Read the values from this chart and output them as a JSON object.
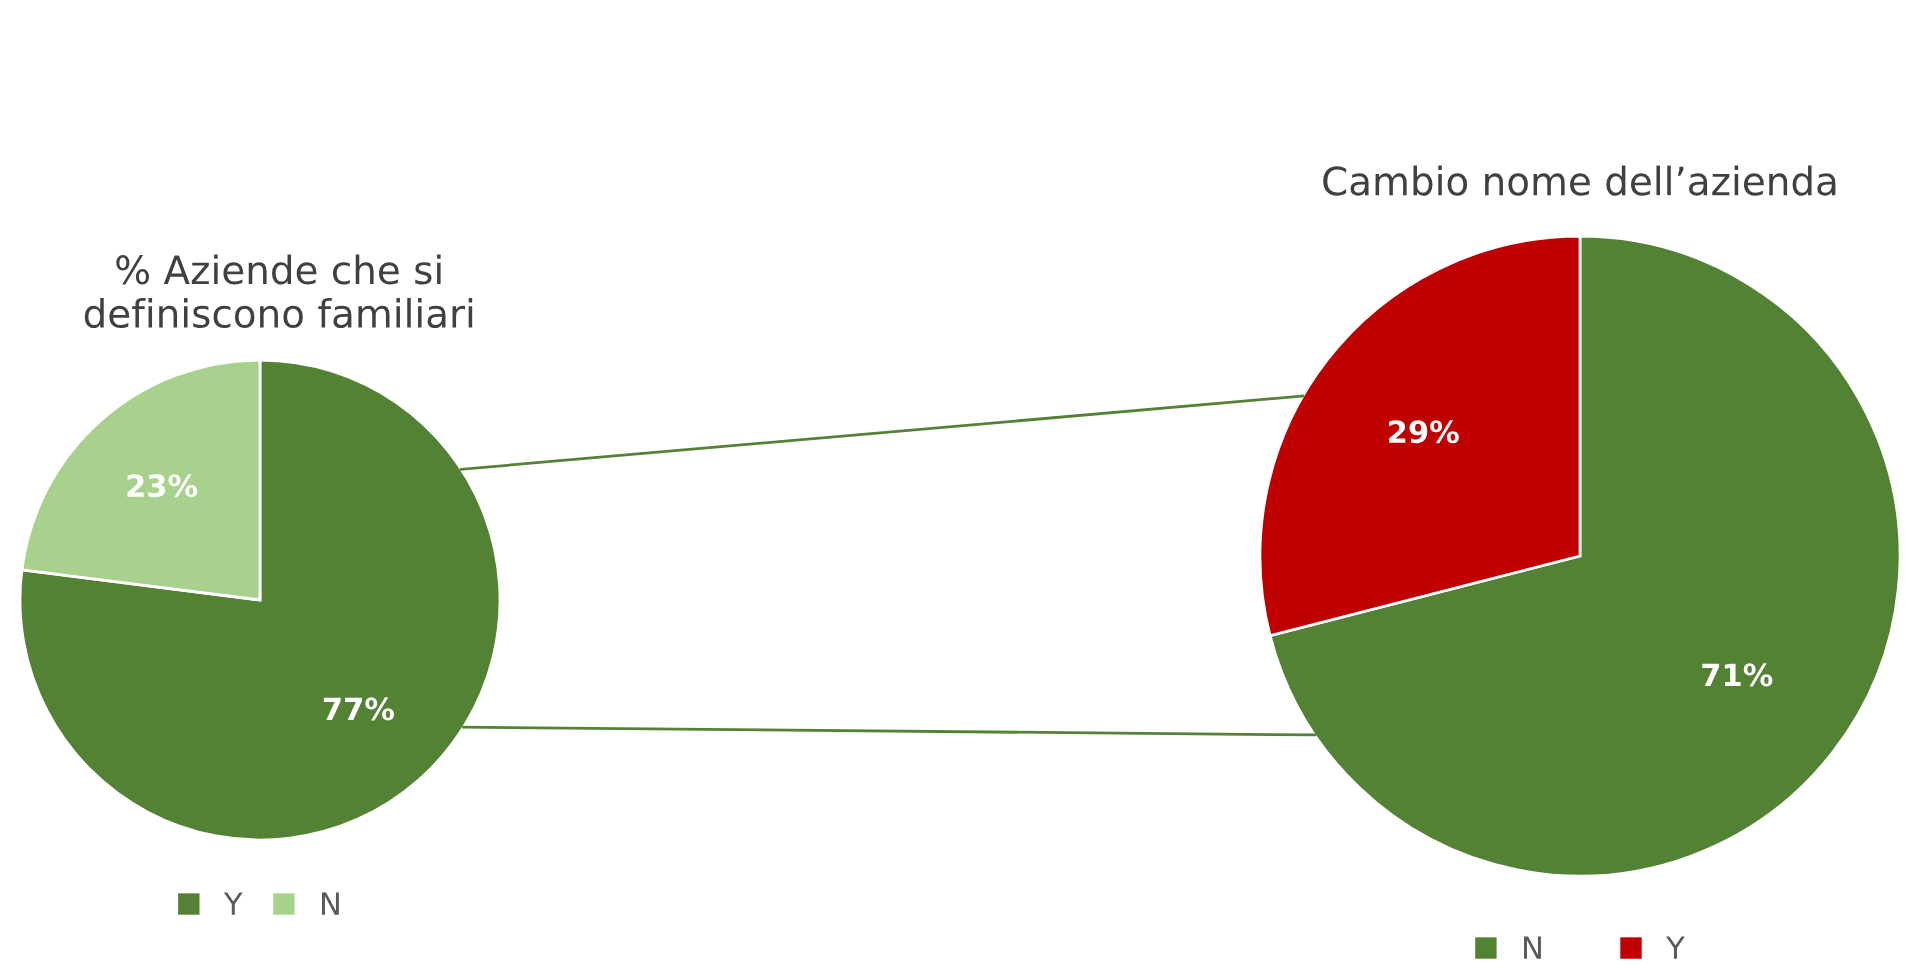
{
  "chart_data": [
    {
      "type": "pie",
      "title": "% Aziende che si\ndefiniscono familiari",
      "categories": [
        "Y",
        "N"
      ],
      "values": [
        77,
        23
      ],
      "colors": [
        "#548235",
        "#a9d18e"
      ],
      "value_labels": [
        "77%",
        "23%"
      ],
      "legend": "bottom"
    },
    {
      "type": "pie",
      "title": "Cambio nome dell’azienda",
      "categories": [
        "N",
        "Y"
      ],
      "values": [
        71,
        29
      ],
      "colors": [
        "#548235",
        "#c00000"
      ],
      "value_labels": [
        "71%",
        "29%"
      ],
      "legend": "bottom"
    }
  ]
}
